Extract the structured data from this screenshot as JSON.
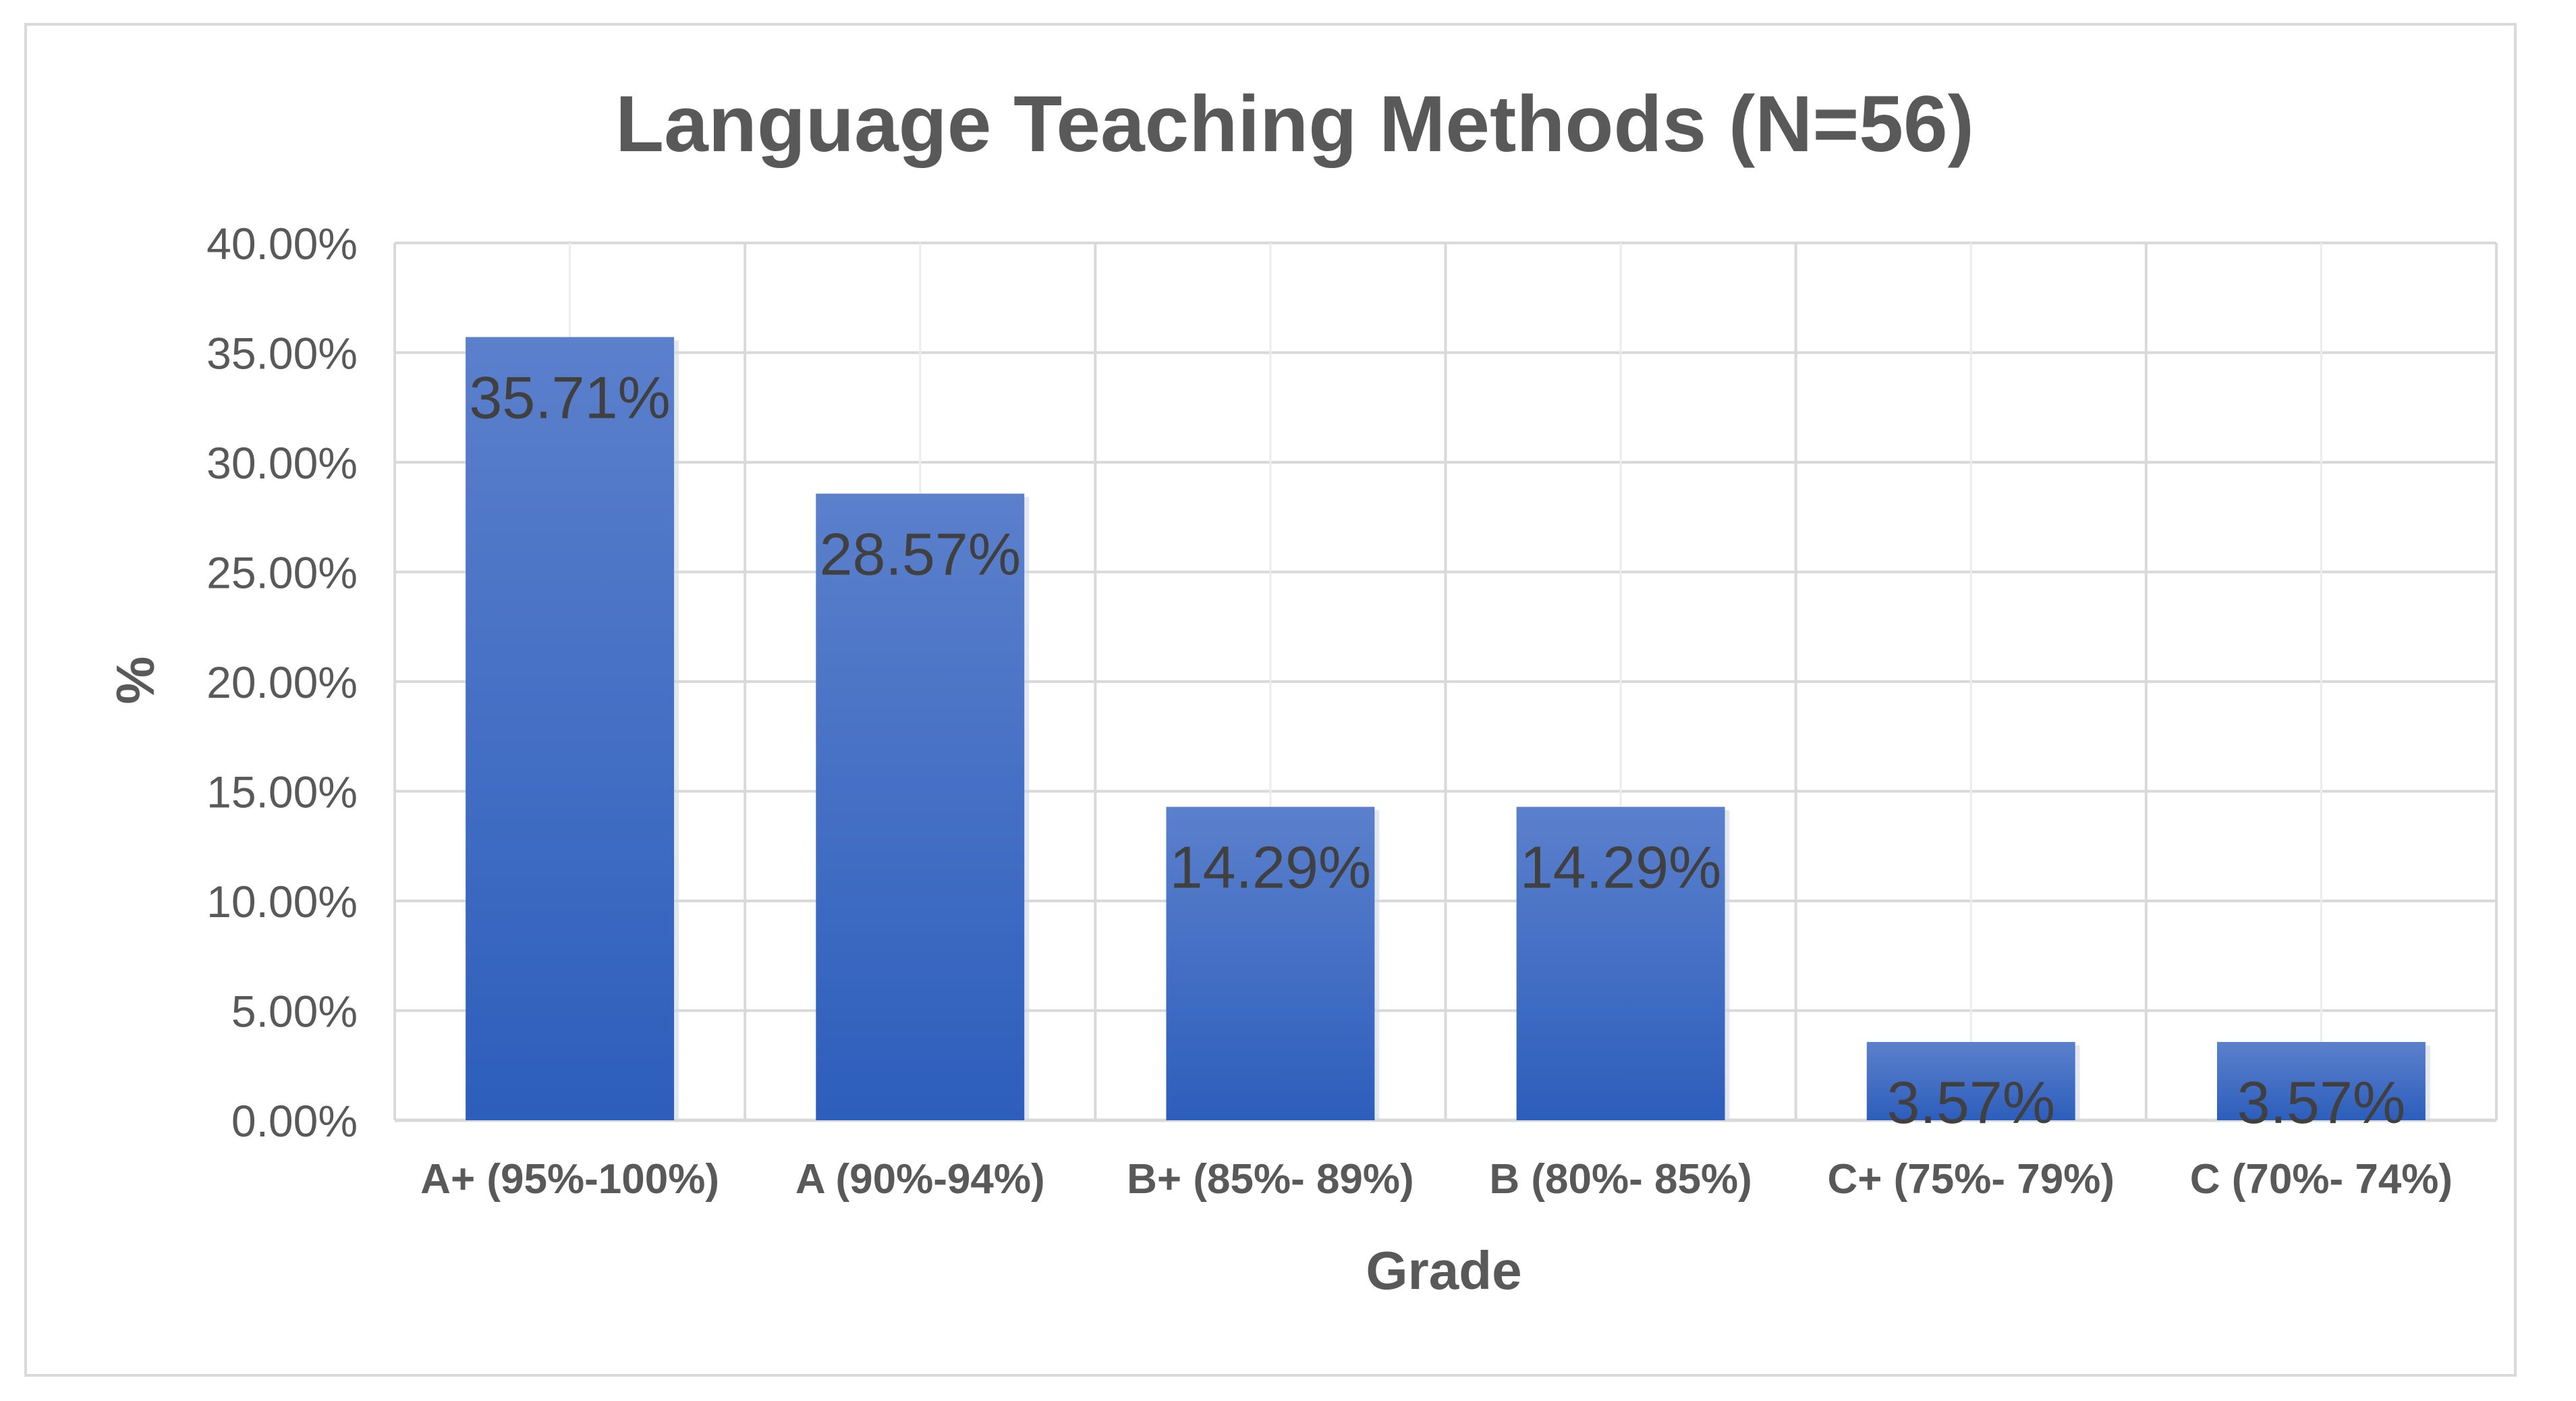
{
  "chart_data": {
    "type": "bar",
    "title": "Language Teaching Methods (N=56)",
    "xlabel": "Grade",
    "ylabel": "%",
    "categories": [
      "A+ (95%-100%)",
      "A (90%-94%)",
      "B+ (85%- 89%)",
      "B (80%- 85%)",
      "C+ (75%- 79%)",
      "C (70%- 74%)"
    ],
    "values": [
      35.71,
      28.57,
      14.29,
      14.29,
      3.57,
      3.57
    ],
    "data_labels": [
      "35.71%",
      "28.57%",
      "14.29%",
      "14.29%",
      "3.57%",
      "3.57%"
    ],
    "y_ticks": [
      "0.00%",
      "5.00%",
      "10.00%",
      "15.00%",
      "20.00%",
      "25.00%",
      "30.00%",
      "35.00%",
      "40.00%"
    ],
    "ylim": [
      0,
      40
    ],
    "grid": true,
    "legend": "none",
    "colors": {
      "bar_top": "#5b80cc",
      "bar_bottom": "#2d5ebc",
      "grid": "#d9d9d9",
      "text": "#595959"
    }
  }
}
